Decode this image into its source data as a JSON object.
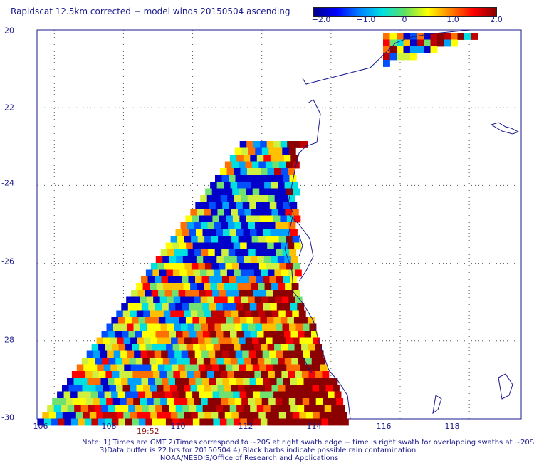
{
  "title": "Rapidscat 12.5km corrected − model winds 20150504 ascending",
  "colorbar": {
    "ticks": [
      "−2.0",
      "−1.0",
      "0",
      "1.0",
      "2.0"
    ],
    "colors": [
      "#00008c",
      "#0000ff",
      "#0080ff",
      "#00e0e0",
      "#60e060",
      "#ffff00",
      "#ff8000",
      "#ff0000",
      "#8b0000"
    ]
  },
  "axes": {
    "lat_labels": [
      "-20",
      "-22",
      "-24",
      "-26",
      "-28",
      "-30"
    ],
    "lon_labels": [
      "106",
      "108",
      "110",
      "112",
      "114",
      "116",
      "118"
    ]
  },
  "time_label": "19:52",
  "notes": [
    "Note: 1) Times are GMT 2)Times correspond to ~20S at right swath edge − time is right swath for overlapping swaths at ~20S",
    "3)Data buffer is 22 hrs for 20150504 4) Black barbs indicate possible rain contamination",
    "NOAA/NESDIS/Office of Research and Applications"
  ],
  "map": {
    "lat_range": [
      -30,
      -20
    ],
    "lon_range": [
      105.5,
      119.5
    ],
    "coast_color": "#1a1a8c",
    "grid": true
  }
}
